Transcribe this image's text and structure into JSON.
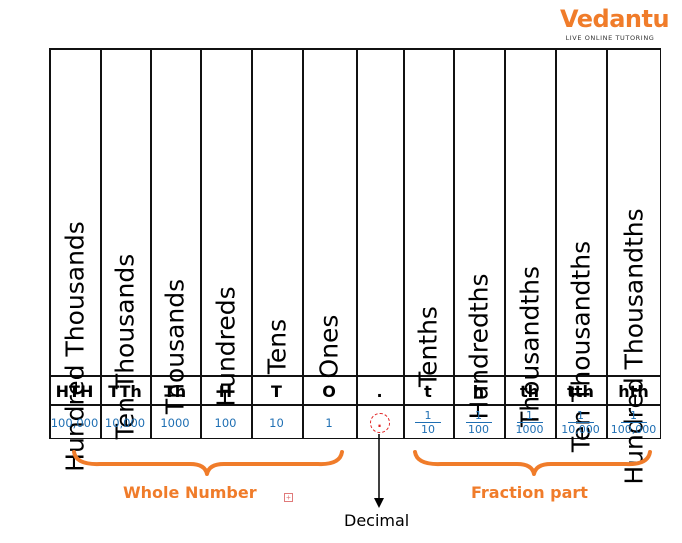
{
  "logo": {
    "word": "Vedantu",
    "tagline": "LIVE ONLINE TUTORING"
  },
  "columns": [
    {
      "name": "Hundred Thousands",
      "abbr": "HTH",
      "value": "100,000"
    },
    {
      "name": "Ten Thousands",
      "abbr": "TTh",
      "value": "10,000"
    },
    {
      "name": "Thousands",
      "abbr": "Th",
      "value": "1000"
    },
    {
      "name": "Hundreds",
      "abbr": "H",
      "value": "100"
    },
    {
      "name": "Tens",
      "abbr": "T",
      "value": "10"
    },
    {
      "name": "Ones",
      "abbr": "O",
      "value": "1"
    },
    {
      "name": "",
      "abbr": ".",
      "value": "."
    },
    {
      "name": "Tenths",
      "abbr": "t",
      "numerator": "1",
      "denominator": "10"
    },
    {
      "name": "Hundredths",
      "abbr": "h",
      "numerator": "1",
      "denominator": "100"
    },
    {
      "name": "Thousandths",
      "abbr": "th",
      "numerator": "1",
      "denominator": "1000"
    },
    {
      "name": "Ten Thousandths",
      "abbr": "tth",
      "numerator": "1",
      "denominator": "10,000"
    },
    {
      "name": "Hundred Thousandths",
      "abbr": "hth",
      "numerator": "1",
      "denominator": "100,000"
    }
  ],
  "labels": {
    "whole": "Whole Number",
    "fraction": "Fraction part",
    "decimal": "Decimal"
  },
  "colors": {
    "accent": "#f07c2a",
    "values": "#1f6fb3",
    "decimal_circle": "#e02020"
  }
}
